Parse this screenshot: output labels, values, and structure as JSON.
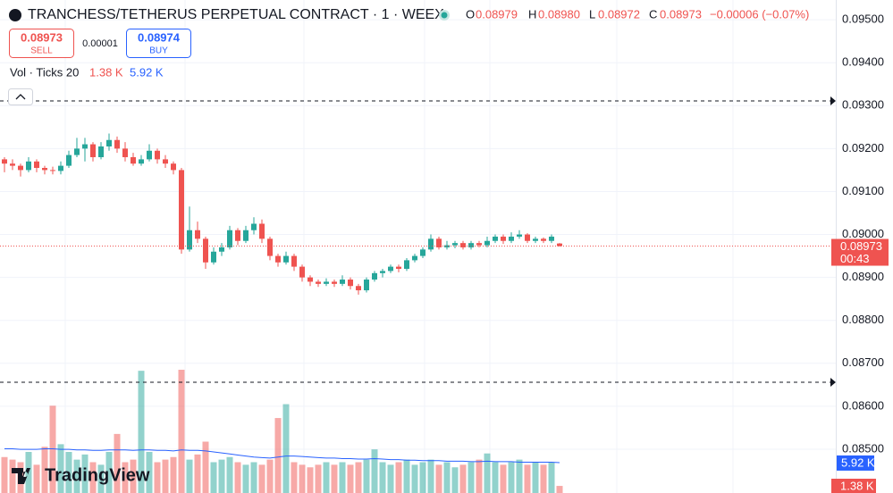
{
  "chart_data": {
    "type": "candlestick",
    "title": "TRANCHESS/TETHERUS PERPETUAL CONTRACT · 1 · WEEX",
    "ohlc_header": {
      "o_label": "O",
      "open": "0.08979",
      "h_label": "H",
      "high": "0.08980",
      "l_label": "L",
      "low": "0.08972",
      "c_label": "C",
      "close": "0.08973",
      "change": "−0.00006 (−0.07%)"
    },
    "trade": {
      "sell_price": "0.08973",
      "sell_label": "SELL",
      "spread": "0.00001",
      "buy_price": "0.08974",
      "buy_label": "BUY"
    },
    "volume_legend": {
      "label": "Vol · Ticks 20",
      "volume_last_label": "1.38 K",
      "volume_ma_last_label": "5.92 K"
    },
    "countdown": "00:43",
    "logo": "TradingView",
    "up_color": "#26a69a",
    "down_color": "#ef5350",
    "ylim": [
      0.08398,
      0.09546
    ],
    "yticks": [
      {
        "value": 0.095,
        "label": "0.09500"
      },
      {
        "value": 0.094,
        "label": "0.09400"
      },
      {
        "value": 0.093,
        "label": "0.09300"
      },
      {
        "value": 0.092,
        "label": "0.09200"
      },
      {
        "value": 0.091,
        "label": "0.09100"
      },
      {
        "value": 0.09,
        "label": "0.09000"
      },
      {
        "value": 0.089,
        "label": "0.08900"
      },
      {
        "value": 0.088,
        "label": "0.08800"
      },
      {
        "value": 0.087,
        "label": "0.08700"
      },
      {
        "value": 0.086,
        "label": "0.08600"
      },
      {
        "value": 0.085,
        "label": "0.08500"
      }
    ],
    "levels": [
      0.09311,
      0.08656
    ],
    "vol_ylim": [
      0,
      96000
    ],
    "candles": [
      [
        0.09175,
        0.0918,
        0.09145,
        0.09165
      ],
      [
        0.09165,
        0.09175,
        0.0915,
        0.0916
      ],
      [
        0.0916,
        0.09165,
        0.09135,
        0.0915
      ],
      [
        0.0915,
        0.0918,
        0.09145,
        0.0917
      ],
      [
        0.0917,
        0.09175,
        0.09145,
        0.09155
      ],
      [
        0.09155,
        0.0916,
        0.0914,
        0.0915
      ],
      [
        0.0915,
        0.09158,
        0.0914,
        0.09148
      ],
      [
        0.09148,
        0.0917,
        0.0914,
        0.0916
      ],
      [
        0.0916,
        0.09195,
        0.09155,
        0.09185
      ],
      [
        0.09185,
        0.09225,
        0.0918,
        0.092
      ],
      [
        0.092,
        0.09225,
        0.0917,
        0.0921
      ],
      [
        0.0921,
        0.09215,
        0.0917,
        0.0918
      ],
      [
        0.0918,
        0.09215,
        0.09175,
        0.09205
      ],
      [
        0.09205,
        0.09235,
        0.09195,
        0.0922
      ],
      [
        0.0922,
        0.09228,
        0.0919,
        0.092
      ],
      [
        0.092,
        0.09215,
        0.0917,
        0.0918
      ],
      [
        0.0918,
        0.0919,
        0.0916,
        0.09165
      ],
      [
        0.09165,
        0.09185,
        0.0916,
        0.09175
      ],
      [
        0.09175,
        0.0921,
        0.0917,
        0.09195
      ],
      [
        0.09195,
        0.092,
        0.09165,
        0.09175
      ],
      [
        0.09175,
        0.09185,
        0.09155,
        0.09165
      ],
      [
        0.09165,
        0.0917,
        0.0914,
        0.0915
      ],
      [
        0.0915,
        0.09155,
        0.08955,
        0.08965
      ],
      [
        0.08965,
        0.09065,
        0.0896,
        0.0901
      ],
      [
        0.0901,
        0.0903,
        0.0898,
        0.0899
      ],
      [
        0.0899,
        0.08995,
        0.0892,
        0.08935
      ],
      [
        0.08935,
        0.0897,
        0.0893,
        0.0896
      ],
      [
        0.0896,
        0.0898,
        0.0895,
        0.0897
      ],
      [
        0.0897,
        0.0902,
        0.08965,
        0.0901
      ],
      [
        0.0901,
        0.09015,
        0.08975,
        0.08985
      ],
      [
        0.08985,
        0.0902,
        0.0898,
        0.0901
      ],
      [
        0.0901,
        0.0904,
        0.09,
        0.09025
      ],
      [
        0.09025,
        0.09035,
        0.0898,
        0.0899
      ],
      [
        0.0899,
        0.08995,
        0.0894,
        0.0895
      ],
      [
        0.0895,
        0.08955,
        0.08925,
        0.08935
      ],
      [
        0.08935,
        0.0896,
        0.0893,
        0.0895
      ],
      [
        0.0895,
        0.08955,
        0.08915,
        0.08925
      ],
      [
        0.08925,
        0.0893,
        0.0889,
        0.089
      ],
      [
        0.089,
        0.08905,
        0.0888,
        0.0889
      ],
      [
        0.0889,
        0.08895,
        0.08878,
        0.08885
      ],
      [
        0.08885,
        0.08898,
        0.0888,
        0.0889
      ],
      [
        0.0889,
        0.08895,
        0.08878,
        0.08885
      ],
      [
        0.08885,
        0.08905,
        0.0888,
        0.08895
      ],
      [
        0.08895,
        0.089,
        0.08872,
        0.0888
      ],
      [
        0.0888,
        0.08885,
        0.0886,
        0.0887
      ],
      [
        0.0887,
        0.089,
        0.08865,
        0.08895
      ],
      [
        0.08895,
        0.08915,
        0.0889,
        0.0891
      ],
      [
        0.0891,
        0.0892,
        0.089,
        0.08915
      ],
      [
        0.08915,
        0.0893,
        0.0891,
        0.08925
      ],
      [
        0.08925,
        0.0893,
        0.08912,
        0.0892
      ],
      [
        0.0892,
        0.08945,
        0.08915,
        0.0894
      ],
      [
        0.0894,
        0.08955,
        0.08935,
        0.0895
      ],
      [
        0.0895,
        0.0897,
        0.08945,
        0.08965
      ],
      [
        0.08965,
        0.09,
        0.0896,
        0.0899
      ],
      [
        0.0899,
        0.08995,
        0.08965,
        0.0897
      ],
      [
        0.0897,
        0.08985,
        0.08965,
        0.08975
      ],
      [
        0.08975,
        0.08985,
        0.08968,
        0.0898
      ],
      [
        0.0898,
        0.08985,
        0.08965,
        0.0897
      ],
      [
        0.0897,
        0.08985,
        0.08965,
        0.0898
      ],
      [
        0.0898,
        0.08985,
        0.0897,
        0.08975
      ],
      [
        0.08975,
        0.08995,
        0.0897,
        0.08985
      ],
      [
        0.08985,
        0.09,
        0.0898,
        0.08995
      ],
      [
        0.08995,
        0.09,
        0.08978,
        0.08985
      ],
      [
        0.08985,
        0.09005,
        0.0898,
        0.08995
      ],
      [
        0.08995,
        0.0901,
        0.0899,
        0.09
      ],
      [
        0.09,
        0.09003,
        0.0898,
        0.08985
      ],
      [
        0.08985,
        0.08995,
        0.0898,
        0.0899
      ],
      [
        0.0899,
        0.08993,
        0.0898,
        0.08985
      ],
      [
        0.08985,
        0.09,
        0.0898,
        0.08995
      ],
      [
        0.08979,
        0.0898,
        0.08972,
        0.08973
      ]
    ],
    "volumes": [
      7000,
      6500,
      6000,
      8000,
      5500,
      9000,
      17000,
      9500,
      8000,
      6500,
      7500,
      6000,
      5500,
      8000,
      11500,
      6000,
      6500,
      23800,
      8000,
      6000,
      6500,
      7000,
      24000,
      6500,
      7500,
      10000,
      6000,
      6500,
      7000,
      6000,
      5500,
      6000,
      5500,
      6500,
      14600,
      17300,
      6000,
      5500,
      5000,
      5500,
      6000,
      5500,
      6000,
      5500,
      6000,
      6500,
      8500,
      6000,
      5500,
      6000,
      6500,
      5500,
      6000,
      6500,
      5500,
      6000,
      5000,
      5500,
      6000,
      6500,
      7700,
      6000,
      5500,
      6000,
      6500,
      5500,
      6000,
      5500,
      6000,
      1380
    ],
    "volume_ma": [
      8600,
      8600,
      8500,
      8500,
      8500,
      8600,
      8600,
      8500,
      8500,
      8400,
      8400,
      8300,
      8300,
      8400,
      8400,
      8400,
      8300,
      8400,
      8400,
      8300,
      8300,
      8200,
      8400,
      8300,
      8300,
      8200,
      8000,
      7800,
      7600,
      7400,
      7200,
      7000,
      6900,
      6800,
      7000,
      7200,
      7200,
      7100,
      7000,
      6900,
      6800,
      6800,
      6700,
      6700,
      6600,
      6600,
      6700,
      6600,
      6500,
      6500,
      6400,
      6400,
      6300,
      6300,
      6300,
      6200,
      6200,
      6200,
      6100,
      6100,
      6200,
      6100,
      6100,
      6100,
      6000,
      6000,
      6000,
      6000,
      6000,
      5920
    ],
    "volume_ma_color": "#2962ff"
  }
}
